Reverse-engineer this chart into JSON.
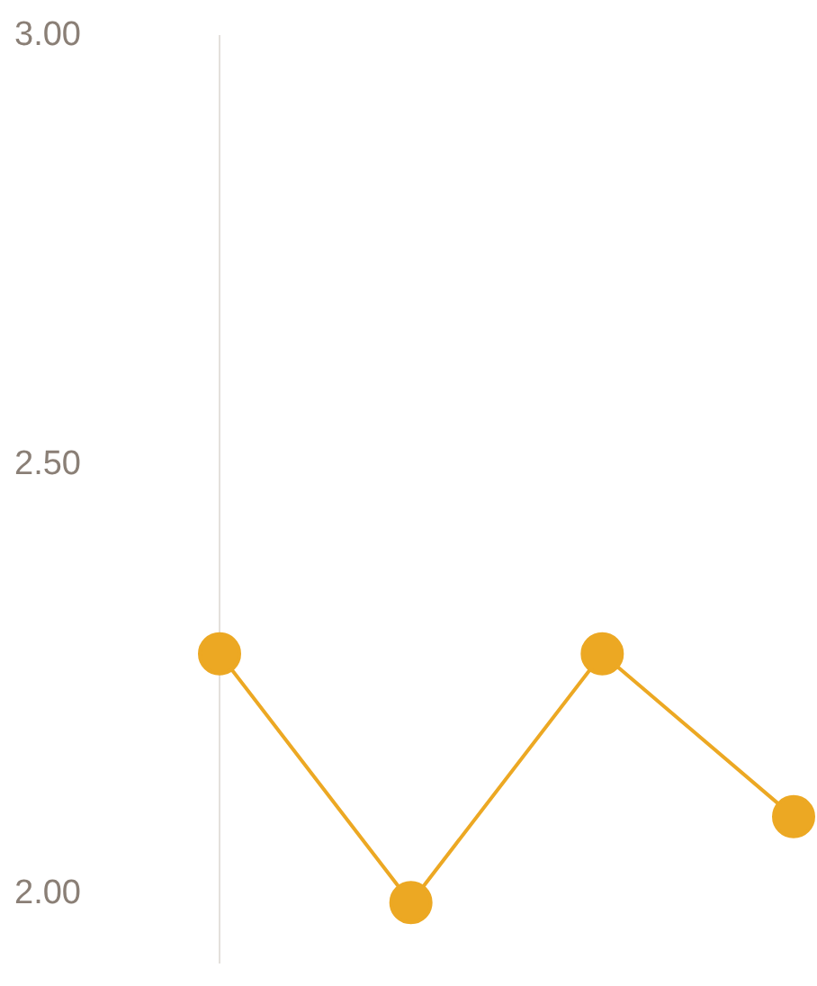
{
  "chart_data": {
    "type": "line",
    "categories": [
      null,
      null,
      null,
      null
    ],
    "series": [
      {
        "color": "#eca823",
        "values": [
          2.28,
          1.99,
          2.28,
          2.09
        ]
      }
    ],
    "ylim": [
      1.92,
      3.0
    ],
    "yticks": [
      {
        "value": 2,
        "label": "2.00"
      },
      {
        "value": 2.5,
        "label": "2.50"
      },
      {
        "value": 3,
        "label": "3.00"
      }
    ],
    "grid": false,
    "legend": false,
    "marker": "circle",
    "tick_labels": "y"
  }
}
